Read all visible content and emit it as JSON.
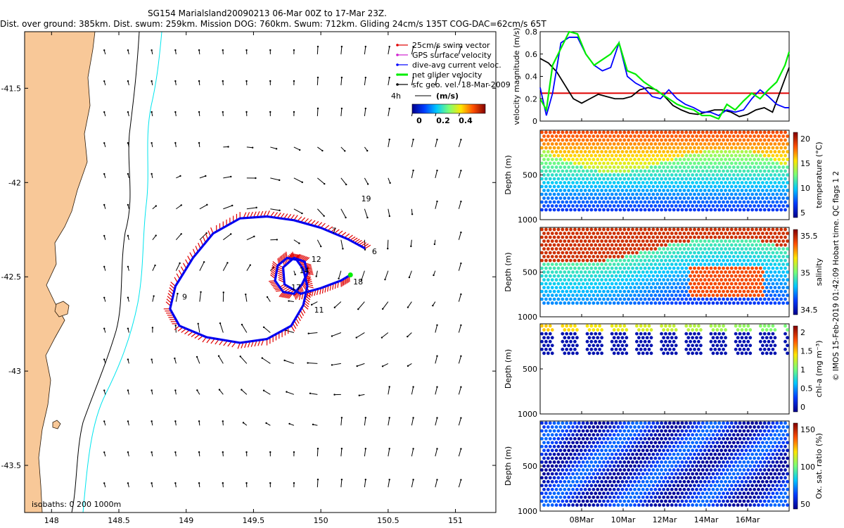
{
  "header": {
    "line1": "SG154 Marialsland20090213 06-Mar 00Z to 17-Mar 23Z.",
    "line2": "Dist. over ground: 385km. Dist. swum: 259km. Mission DOG: 760km. Swum: 712km. Gliding 24cm/s 135T COG-DAC=62cm/s 65T"
  },
  "colors": {
    "land": "#f8c898",
    "coast": "#000000",
    "isobath_200": "#000000",
    "isobath_1000": "#00e5ee",
    "swim": "#e00000",
    "gps": "#d020d0",
    "dac": "#0000ff",
    "net": "#00ee00",
    "threshold": "#e00000"
  },
  "chart_data": [
    {
      "type": "map",
      "xlim": [
        147.8,
        151.3
      ],
      "ylim": [
        -43.75,
        -41.2
      ],
      "x_ticks": [
        "148",
        "148.5",
        "149",
        "149.5",
        "150",
        "150.5",
        "151"
      ],
      "y_ticks": [
        "-41.5",
        "-42",
        "-42.5",
        "-43",
        "-43.5"
      ],
      "legend": {
        "position": "top-right",
        "entries": [
          "25cm/s swim vector",
          "GPS surface velocity",
          "dive-avg current veloc.",
          "net glider velocity",
          "sfc geo. vel. 18-Mar-2009"
        ],
        "scale_label": "4h",
        "colorbar_label": "(m/s)",
        "colorbar_ticks": [
          "0",
          "0.2",
          "0.4"
        ]
      },
      "isobath_label": "isobaths: 0   200  1000m",
      "day_labels": [
        {
          "label": "7",
          "lon": 150.08,
          "lat": -42.27
        },
        {
          "label": "6",
          "lon": 150.38,
          "lat": -42.38
        },
        {
          "label": "9",
          "lon": 148.97,
          "lat": -42.62
        },
        {
          "label": "11",
          "lon": 149.95,
          "lat": -42.69
        },
        {
          "label": "12",
          "lon": 149.93,
          "lat": -42.42
        },
        {
          "label": "14",
          "lon": 149.84,
          "lat": -42.48
        },
        {
          "label": "17",
          "lon": 149.78,
          "lat": -42.57
        },
        {
          "label": "18",
          "lon": 150.24,
          "lat": -42.54
        },
        {
          "label": "19",
          "lon": 150.3,
          "lat": -42.1
        }
      ],
      "track": [
        [
          150.33,
          -42.35
        ],
        [
          150.2,
          -42.3
        ],
        [
          150.0,
          -42.24
        ],
        [
          149.8,
          -42.2
        ],
        [
          149.6,
          -42.18
        ],
        [
          149.4,
          -42.19
        ],
        [
          149.2,
          -42.27
        ],
        [
          149.05,
          -42.4
        ],
        [
          148.92,
          -42.55
        ],
        [
          148.88,
          -42.67
        ],
        [
          148.95,
          -42.76
        ],
        [
          149.15,
          -42.82
        ],
        [
          149.4,
          -42.85
        ],
        [
          149.6,
          -42.83
        ],
        [
          149.78,
          -42.76
        ],
        [
          149.87,
          -42.65
        ],
        [
          149.9,
          -42.55
        ],
        [
          149.87,
          -42.46
        ],
        [
          149.82,
          -42.41
        ],
        [
          149.75,
          -42.4
        ],
        [
          149.68,
          -42.44
        ],
        [
          149.66,
          -42.52
        ],
        [
          149.72,
          -42.58
        ],
        [
          149.8,
          -42.59
        ],
        [
          149.86,
          -42.54
        ],
        [
          149.9,
          -42.48
        ],
        [
          149.88,
          -42.42
        ],
        [
          149.8,
          -42.4
        ],
        [
          149.72,
          -42.45
        ],
        [
          149.73,
          -42.54
        ],
        [
          149.85,
          -42.59
        ],
        [
          150.0,
          -42.56
        ],
        [
          150.15,
          -42.52
        ],
        [
          150.22,
          -42.49
        ]
      ]
    },
    {
      "type": "line",
      "ylabel": "velocity magnitude (m/s)",
      "ylim": [
        0,
        0.8
      ],
      "y_ticks": [
        "0",
        "0.2",
        "0.4",
        "0.6",
        "0.8"
      ],
      "x_range_days": [
        6,
        18
      ],
      "threshold": 0.25,
      "series": [
        {
          "color": "black",
          "x": [
            6.0,
            6.4,
            6.8,
            7.2,
            7.6,
            8.0,
            8.4,
            8.8,
            9.2,
            9.6,
            10.0,
            10.4,
            10.8,
            11.2,
            11.6,
            12.0,
            12.4,
            12.8,
            13.2,
            13.6,
            14.0,
            14.4,
            14.8,
            15.2,
            15.6,
            16.0,
            16.4,
            16.8,
            17.2,
            17.6,
            18.0
          ],
          "y": [
            0.56,
            0.52,
            0.44,
            0.32,
            0.2,
            0.16,
            0.2,
            0.24,
            0.22,
            0.2,
            0.2,
            0.22,
            0.28,
            0.3,
            0.28,
            0.22,
            0.14,
            0.1,
            0.07,
            0.06,
            0.08,
            0.1,
            0.1,
            0.08,
            0.04,
            0.06,
            0.1,
            0.12,
            0.08,
            0.28,
            0.48
          ]
        },
        {
          "color": "blue",
          "x": [
            6.0,
            6.3,
            6.6,
            7.0,
            7.4,
            7.8,
            8.2,
            8.6,
            9.0,
            9.4,
            9.8,
            10.2,
            10.6,
            11.0,
            11.4,
            11.8,
            12.2,
            12.6,
            13.0,
            13.4,
            13.8,
            14.2,
            14.6,
            15.0,
            15.4,
            15.8,
            16.2,
            16.6,
            17.0,
            17.4,
            17.8,
            18.0
          ],
          "y": [
            0.3,
            0.05,
            0.25,
            0.7,
            0.75,
            0.75,
            0.6,
            0.5,
            0.45,
            0.48,
            0.7,
            0.4,
            0.34,
            0.3,
            0.22,
            0.2,
            0.28,
            0.2,
            0.15,
            0.12,
            0.08,
            0.08,
            0.05,
            0.1,
            0.08,
            0.1,
            0.2,
            0.28,
            0.22,
            0.15,
            0.12,
            0.12
          ]
        },
        {
          "color": "green",
          "x": [
            6.0,
            6.3,
            6.6,
            7.0,
            7.4,
            7.8,
            8.2,
            8.6,
            9.0,
            9.4,
            9.8,
            10.2,
            10.6,
            11.0,
            11.4,
            11.8,
            12.2,
            12.6,
            13.0,
            13.4,
            13.8,
            14.2,
            14.6,
            15.0,
            15.4,
            15.8,
            16.2,
            16.6,
            17.0,
            17.4,
            17.8,
            18.0
          ],
          "y": [
            0.2,
            0.1,
            0.5,
            0.65,
            0.8,
            0.78,
            0.6,
            0.5,
            0.55,
            0.6,
            0.7,
            0.45,
            0.42,
            0.35,
            0.3,
            0.25,
            0.2,
            0.15,
            0.12,
            0.1,
            0.05,
            0.05,
            0.02,
            0.15,
            0.1,
            0.18,
            0.25,
            0.2,
            0.28,
            0.35,
            0.5,
            0.62
          ]
        }
      ]
    },
    {
      "type": "heatmap",
      "ylabel": "Depth (m)",
      "y_ticks": [
        "500",
        "1000"
      ],
      "clabel": "temperature (°C)",
      "cticks": [
        "5",
        "10",
        "15",
        "20"
      ]
    },
    {
      "type": "heatmap",
      "ylabel": "Depth (m)",
      "y_ticks": [
        "500",
        "1000"
      ],
      "clabel": "salinity",
      "cticks": [
        "34.5",
        "35",
        "35.5"
      ]
    },
    {
      "type": "heatmap",
      "ylabel": "Depth (m)",
      "y_ticks": [
        "500",
        "1000"
      ],
      "clabel": "chl-a (mg m⁻³)",
      "cticks": [
        "0",
        "0.5",
        "1",
        "1.5",
        "2"
      ]
    },
    {
      "type": "heatmap",
      "ylabel": "Depth (m)",
      "y_ticks": [
        "500",
        "1000"
      ],
      "clabel": "Ox. sat. ratio (%)",
      "cticks": [
        "50",
        "100",
        "150"
      ]
    }
  ],
  "time_axis": {
    "ticks": [
      "08Mar",
      "10Mar",
      "12Mar",
      "14Mar",
      "16Mar"
    ]
  },
  "side_note": "© IMOS 15-Feb-2019 01:42:09 Hobart time. QC flags 1  2"
}
